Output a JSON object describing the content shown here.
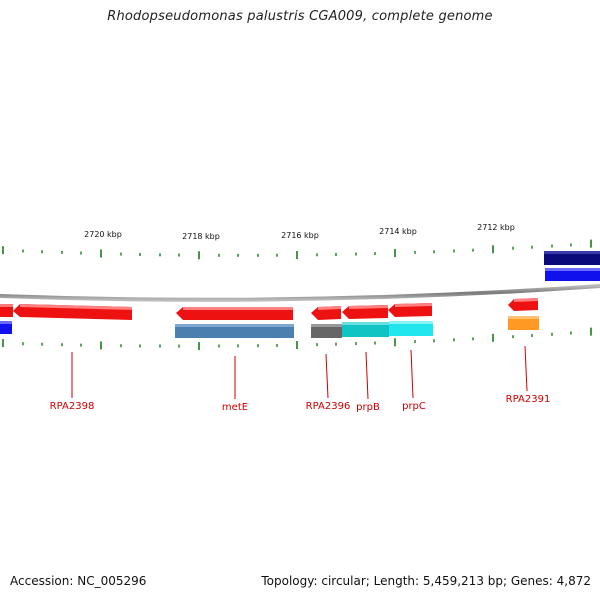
{
  "title": "Rhodopseudomonas palustris CGA009, complete genome",
  "footer": {
    "accession": "Accession: NC_005296",
    "summary": "Topology: circular; Length: 5,459,213 bp; Genes: 4,872"
  },
  "scale": {
    "labels": [
      "2720 kbp",
      "2718 kbp",
      "2716 kbp",
      "2714 kbp",
      "2712 kbp"
    ]
  },
  "colors": {
    "backbone": "#888888",
    "tick": "#1a7a1a",
    "label": "#cc0000",
    "gene_red": "#ee1111",
    "steelblue": "#4a7fb0",
    "gray": "#666666",
    "cyan_dark": "#11c4c4",
    "cyan": "#22e6ee",
    "orange": "#ff9922",
    "navy": "#0a0a7a",
    "blue": "#1111ee"
  },
  "gene_labels": [
    "RPA2398",
    "metE",
    "RPA2396",
    "prpB",
    "prpC",
    "RPA2391"
  ]
}
